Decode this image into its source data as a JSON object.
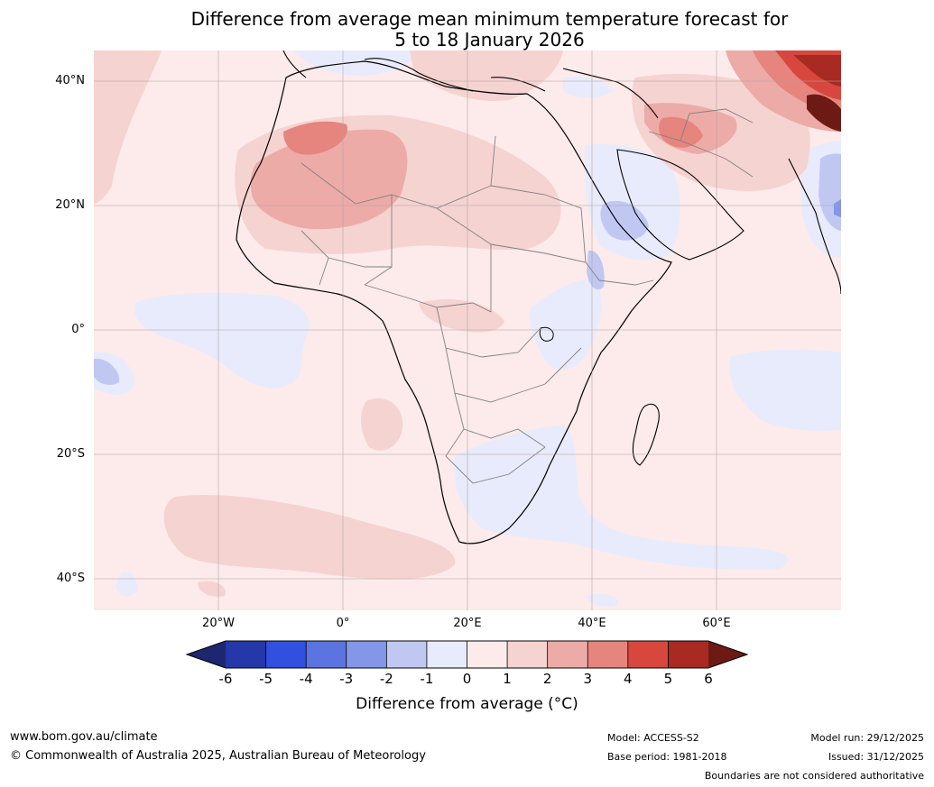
{
  "title_line1": "Difference from average mean minimum temperature forecast for",
  "title_line2": "5 to 18 January 2026",
  "map": {
    "lat_labels": [
      "40°N",
      "20°N",
      "0°",
      "20°S",
      "40°S"
    ],
    "lon_labels": [
      "20°W",
      "0°",
      "20°E",
      "40°E",
      "60°E"
    ],
    "lon_extent_deg": [
      -40,
      80
    ],
    "lat_extent_deg": [
      -45,
      45
    ]
  },
  "colorbar": {
    "ticks": [
      "-6",
      "-5",
      "-4",
      "-3",
      "-2",
      "-1",
      "0",
      "1",
      "2",
      "3",
      "4",
      "5",
      "6"
    ],
    "colors": [
      "#2438a9",
      "#3150df",
      "#5b74e0",
      "#8496e8",
      "#c0c8f2",
      "#e8ebfb",
      "#fcebea",
      "#f5d3d1",
      "#ecaba7",
      "#e6847e",
      "#d8473d",
      "#a82a22"
    ],
    "under_color": "#1c2770",
    "over_color": "#6e1a14",
    "label": "Difference from average (°C)"
  },
  "footer": {
    "website": "www.bom.gov.au/climate",
    "copyright": "© Commonwealth of Australia 2025, Australian Bureau of Meteorology",
    "model": "Model: ACCESS-S2",
    "base_period": "Base period: 1981-2018",
    "model_run": "Model run: 29/12/2025",
    "issued": "Issued: 31/12/2025",
    "disclaimer": "Boundaries are not considered authoritative"
  }
}
